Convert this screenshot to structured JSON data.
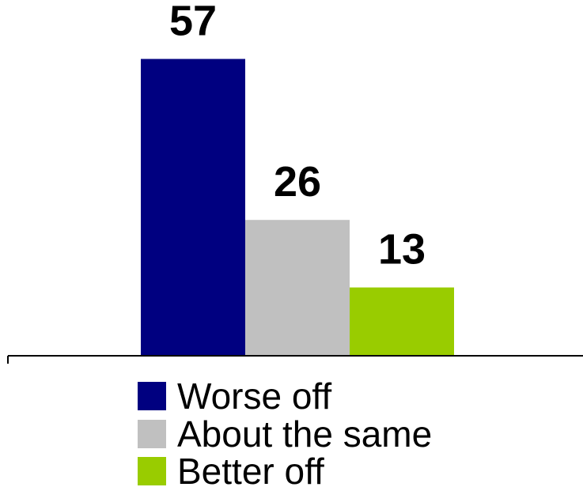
{
  "chart_data": {
    "type": "bar",
    "categories": [
      "Worse off",
      "About the same",
      "Better off"
    ],
    "values": [
      57,
      26,
      13
    ],
    "data_labels": [
      "57",
      "26",
      "13"
    ],
    "colors": [
      "#000080",
      "#c0c0c0",
      "#99cc00"
    ],
    "title": "",
    "xlabel": "",
    "ylabel": "",
    "ylim": [
      0,
      65
    ],
    "grid": false,
    "legend": {
      "placement": "bottom",
      "entries": [
        {
          "label": "Worse off",
          "color": "#000080"
        },
        {
          "label": "About the same",
          "color": "#c0c0c0"
        },
        {
          "label": "Better off",
          "color": "#99cc00"
        }
      ]
    }
  }
}
